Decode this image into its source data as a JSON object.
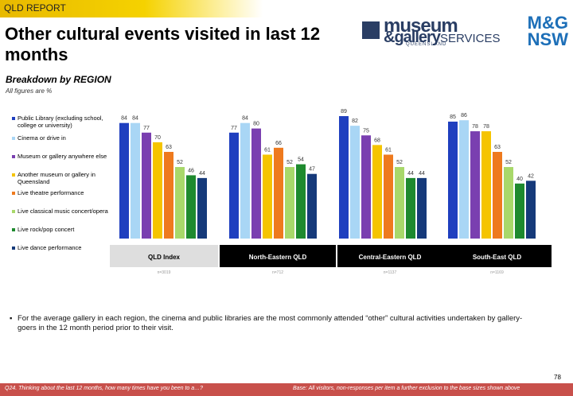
{
  "header": {
    "report_label": "QLD REPORT",
    "title": "Other cultural events visited in last 12 months",
    "subtitle": "Breakdown by REGION",
    "note": "All figures are %"
  },
  "logo": {
    "line1": "museum",
    "line2": "&gallery",
    "line2b": "SERVICES",
    "line3": "QUEENSLAND",
    "mg_line1": "M&G",
    "mg_line2": "NSW"
  },
  "colors": {
    "public_library": "#1f3fbf",
    "cinema": "#a9d6f5",
    "museum_anywhere": "#7a3fb0",
    "museum_qld": "#f5c400",
    "theatre": "#ee7a1e",
    "classical": "#a8d86a",
    "rockpop": "#1e8a2e",
    "dance": "#163a7a",
    "header_black": "#000000",
    "header_grey": "#dedede",
    "footer": "#c8504b"
  },
  "chart_data": {
    "type": "bar",
    "title": "Breakdown by REGION",
    "ylabel": "%",
    "ylim": [
      0,
      100
    ],
    "categories": [
      "QLD  Index",
      "North-Eastern QLD",
      "Central-Eastern QLD",
      "South-East QLD"
    ],
    "base_sizes": [
      "n=3019",
      "n=712",
      "n=1137",
      "n=1169"
    ],
    "series": [
      {
        "name": "Public Library (excluding school, college or university)",
        "values": [
          84,
          77,
          89,
          85
        ]
      },
      {
        "name": "Cinema or drive in",
        "values": [
          84,
          84,
          82,
          86
        ]
      },
      {
        "name": "Museum or gallery anywhere else",
        "values": [
          77,
          80,
          75,
          78
        ]
      },
      {
        "name": "Another museum or gallery in Queensland",
        "values": [
          70,
          61,
          68,
          78
        ]
      },
      {
        "name": "Live theatre performance",
        "values": [
          63,
          66,
          61,
          63
        ]
      },
      {
        "name": "Live classical music concert/opera",
        "values": [
          52,
          52,
          52,
          52
        ]
      },
      {
        "name": "Live rock/pop concert",
        "values": [
          46,
          54,
          44,
          40
        ]
      },
      {
        "name": "Live dance performance",
        "values": [
          44,
          47,
          44,
          42
        ]
      }
    ]
  },
  "legend_items": [
    "Public Library (excluding school, college or university)",
    "Cinema or drive in",
    "Museum or gallery anywhere else",
    "Another museum or gallery in Queensland",
    "Live theatre performance",
    "Live classical music concert/opera",
    "Live rock/pop concert",
    "Live dance performance"
  ],
  "bullet_text": "For the average gallery in each region, the cinema and public libraries are the most commonly attended “other” cultural activities undertaken by gallery-goers in the 12 month period prior to their visit.",
  "footer": {
    "question": "Q24. Thinking about the last 12 months, how many times have you been to a…?",
    "base": "Base: All visitors, non-responses per item a further exclusion to the base sizes shown above",
    "page": "78"
  }
}
